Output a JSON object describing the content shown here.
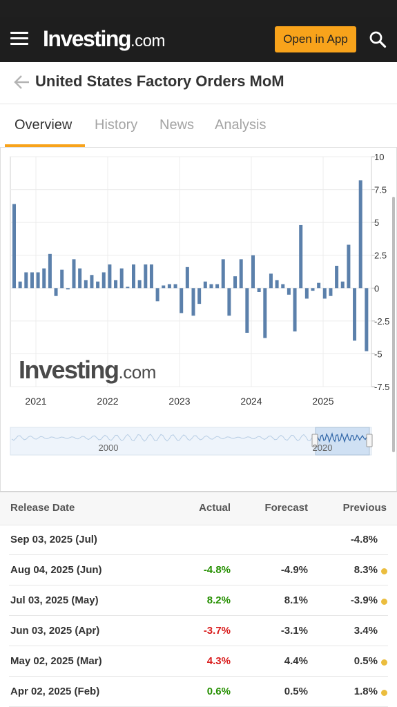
{
  "header": {
    "logo_main": "Investing",
    "logo_suffix": ".com",
    "open_app_label": "Open in App"
  },
  "page": {
    "title": "United States Factory Orders MoM"
  },
  "tabs": [
    {
      "label": "Overview",
      "active": true
    },
    {
      "label": "History",
      "active": false
    },
    {
      "label": "News",
      "active": false
    },
    {
      "label": "Analysis",
      "active": false
    }
  ],
  "chart_data": {
    "type": "bar",
    "x_tick_labels": [
      "2021",
      "2022",
      "2023",
      "2024",
      "2025"
    ],
    "y_tick_labels": [
      "10",
      "7.5",
      "5",
      "2.5",
      "0",
      "-2.5",
      "-5",
      "-7.5"
    ],
    "ylim": [
      -7.5,
      10
    ],
    "watermark_main": "Investing",
    "watermark_suffix": ".com",
    "navigator_labels": [
      "2000",
      "2020"
    ],
    "bar_color": "#5b80ab",
    "values": [
      6.4,
      0.5,
      1.2,
      1.2,
      1.2,
      1.5,
      2.6,
      -0.6,
      1.4,
      -0.1,
      2.2,
      1.5,
      0.6,
      1.0,
      0.5,
      1.2,
      1.8,
      0.6,
      1.5,
      0.1,
      1.8,
      0.6,
      1.8,
      1.8,
      -1.0,
      0.2,
      0.3,
      0.3,
      -1.9,
      1.6,
      -2.1,
      -1.2,
      0.5,
      0.3,
      0.3,
      2.2,
      -2.1,
      0.9,
      2.2,
      -3.4,
      2.5,
      -0.3,
      -3.8,
      1.1,
      0.6,
      0.3,
      -0.5,
      -3.3,
      4.8,
      -0.8,
      -0.2,
      0.4,
      -0.8,
      -0.6,
      1.7,
      0.5,
      3.3,
      -4.0,
      8.2,
      -4.8
    ]
  },
  "table": {
    "headers": {
      "date": "Release Date",
      "actual": "Actual",
      "forecast": "Forecast",
      "previous": "Previous"
    },
    "rows": [
      {
        "date": "Sep 03, 2025 (Jul)",
        "actual": "",
        "actual_class": "",
        "forecast": "",
        "previous": "-4.8%",
        "dot": false
      },
      {
        "date": "Aug 04, 2025 (Jun)",
        "actual": "-4.8%",
        "actual_class": "pos",
        "forecast": "-4.9%",
        "previous": "8.3%",
        "dot": true
      },
      {
        "date": "Jul 03, 2025 (May)",
        "actual": "8.2%",
        "actual_class": "pos",
        "forecast": "8.1%",
        "previous": "-3.9%",
        "dot": true
      },
      {
        "date": "Jun 03, 2025 (Apr)",
        "actual": "-3.7%",
        "actual_class": "neg",
        "forecast": "-3.1%",
        "previous": "3.4%",
        "dot": false
      },
      {
        "date": "May 02, 2025 (Mar)",
        "actual": "4.3%",
        "actual_class": "neg",
        "forecast": "4.4%",
        "previous": "0.5%",
        "dot": true
      },
      {
        "date": "Apr 02, 2025 (Feb)",
        "actual": "0.6%",
        "actual_class": "pos",
        "forecast": "0.5%",
        "previous": "1.8%",
        "dot": true
      }
    ]
  }
}
